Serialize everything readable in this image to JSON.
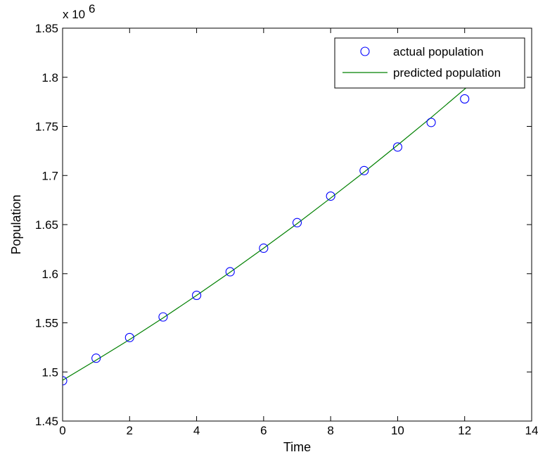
{
  "chart_data": {
    "type": "line",
    "title": "",
    "xlabel": "Time",
    "ylabel": "Population",
    "y_multiplier_label": "x 10",
    "y_multiplier_exponent": "6",
    "xlim": [
      0,
      14
    ],
    "ylim": [
      1.45,
      1.85
    ],
    "x_ticks": [
      0,
      2,
      4,
      6,
      8,
      10,
      12,
      14
    ],
    "x_tick_labels": [
      "0",
      "2",
      "4",
      "6",
      "8",
      "10",
      "12",
      "14"
    ],
    "y_ticks": [
      1.45,
      1.5,
      1.55,
      1.6,
      1.65,
      1.7,
      1.75,
      1.8,
      1.85
    ],
    "y_tick_labels": [
      "1.45",
      "1.5",
      "1.55",
      "1.6",
      "1.65",
      "1.7",
      "1.75",
      "1.8",
      "1.85"
    ],
    "grid": false,
    "legend_position": "top-right",
    "series": [
      {
        "name": "actual population",
        "style": "markers",
        "marker": "circle",
        "color": "#0000ff",
        "x": [
          0,
          1,
          2,
          3,
          4,
          5,
          6,
          7,
          8,
          9,
          10,
          11,
          12
        ],
        "y": [
          1.491,
          1.514,
          1.535,
          1.556,
          1.578,
          1.602,
          1.626,
          1.652,
          1.679,
          1.705,
          1.729,
          1.754,
          1.778
        ]
      },
      {
        "name": "predicted population",
        "style": "line",
        "color": "#008000",
        "x": [
          0,
          1,
          2,
          3,
          4,
          5,
          6,
          7,
          8,
          9,
          10,
          11,
          12,
          12.9
        ],
        "y": [
          1.4915,
          1.512,
          1.533,
          1.555,
          1.578,
          1.6015,
          1.626,
          1.651,
          1.677,
          1.7035,
          1.731,
          1.759,
          1.788,
          1.815
        ]
      }
    ]
  }
}
